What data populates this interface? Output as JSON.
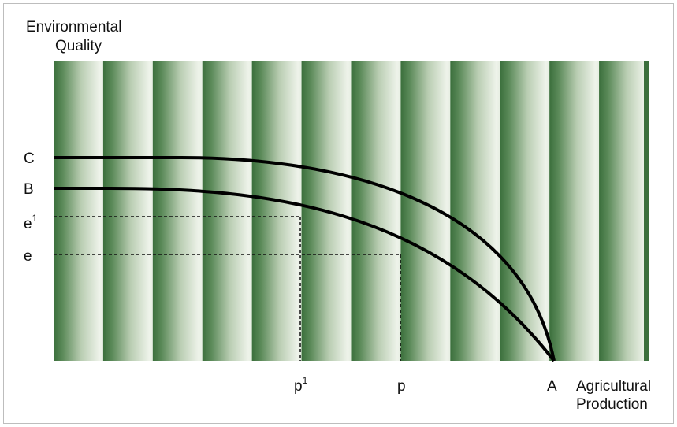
{
  "diagram": {
    "y_axis_label": [
      "Environmental",
      "Quality"
    ],
    "x_axis_label": [
      "Agricultural",
      "Production"
    ],
    "point_labels": {
      "C": "C",
      "B": "B",
      "e1": "e",
      "e1_sup": "1",
      "e": "e",
      "p1": "p",
      "p1_sup": "1",
      "p": "p",
      "A": "A"
    },
    "colors": {
      "stripe_dark": "#3b6f3c",
      "stripe_light": "#e6eee2",
      "curve": "#000000",
      "frame": "#bdbdbd"
    },
    "curves": [
      {
        "name": "C",
        "description": "outer curve from C to A"
      },
      {
        "name": "B",
        "description": "inner curve from B to A"
      }
    ]
  }
}
